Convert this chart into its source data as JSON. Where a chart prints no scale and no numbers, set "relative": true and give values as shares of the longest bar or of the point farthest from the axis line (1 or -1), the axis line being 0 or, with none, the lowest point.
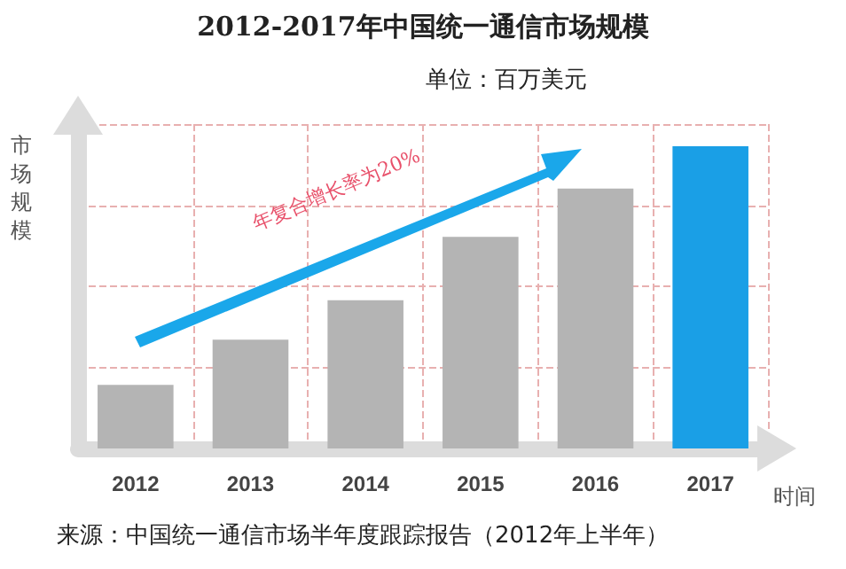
{
  "chart_data": {
    "type": "bar",
    "relative": true,
    "title": "2012-2017年中国统一通信市场规模",
    "subtitle": "单位：百万美元",
    "xlabel": "时间",
    "ylabel": "市场规模",
    "annotations": [
      "年复合增长率为20%",
      "来源：中国统一通信市场半年度跟踪报告（2012年上半年）"
    ],
    "categories": [
      "2012",
      "2013",
      "2014",
      "2015",
      "2016",
      "2017"
    ],
    "values": [
      0.21,
      0.36,
      0.49,
      0.7,
      0.86,
      1
    ],
    "colors": [
      "#b4b4b4",
      "#b4b4b4",
      "#b4b4b4",
      "#b4b4b4",
      "#b4b4b4",
      "#1a9fe6"
    ],
    "grid": true
  }
}
